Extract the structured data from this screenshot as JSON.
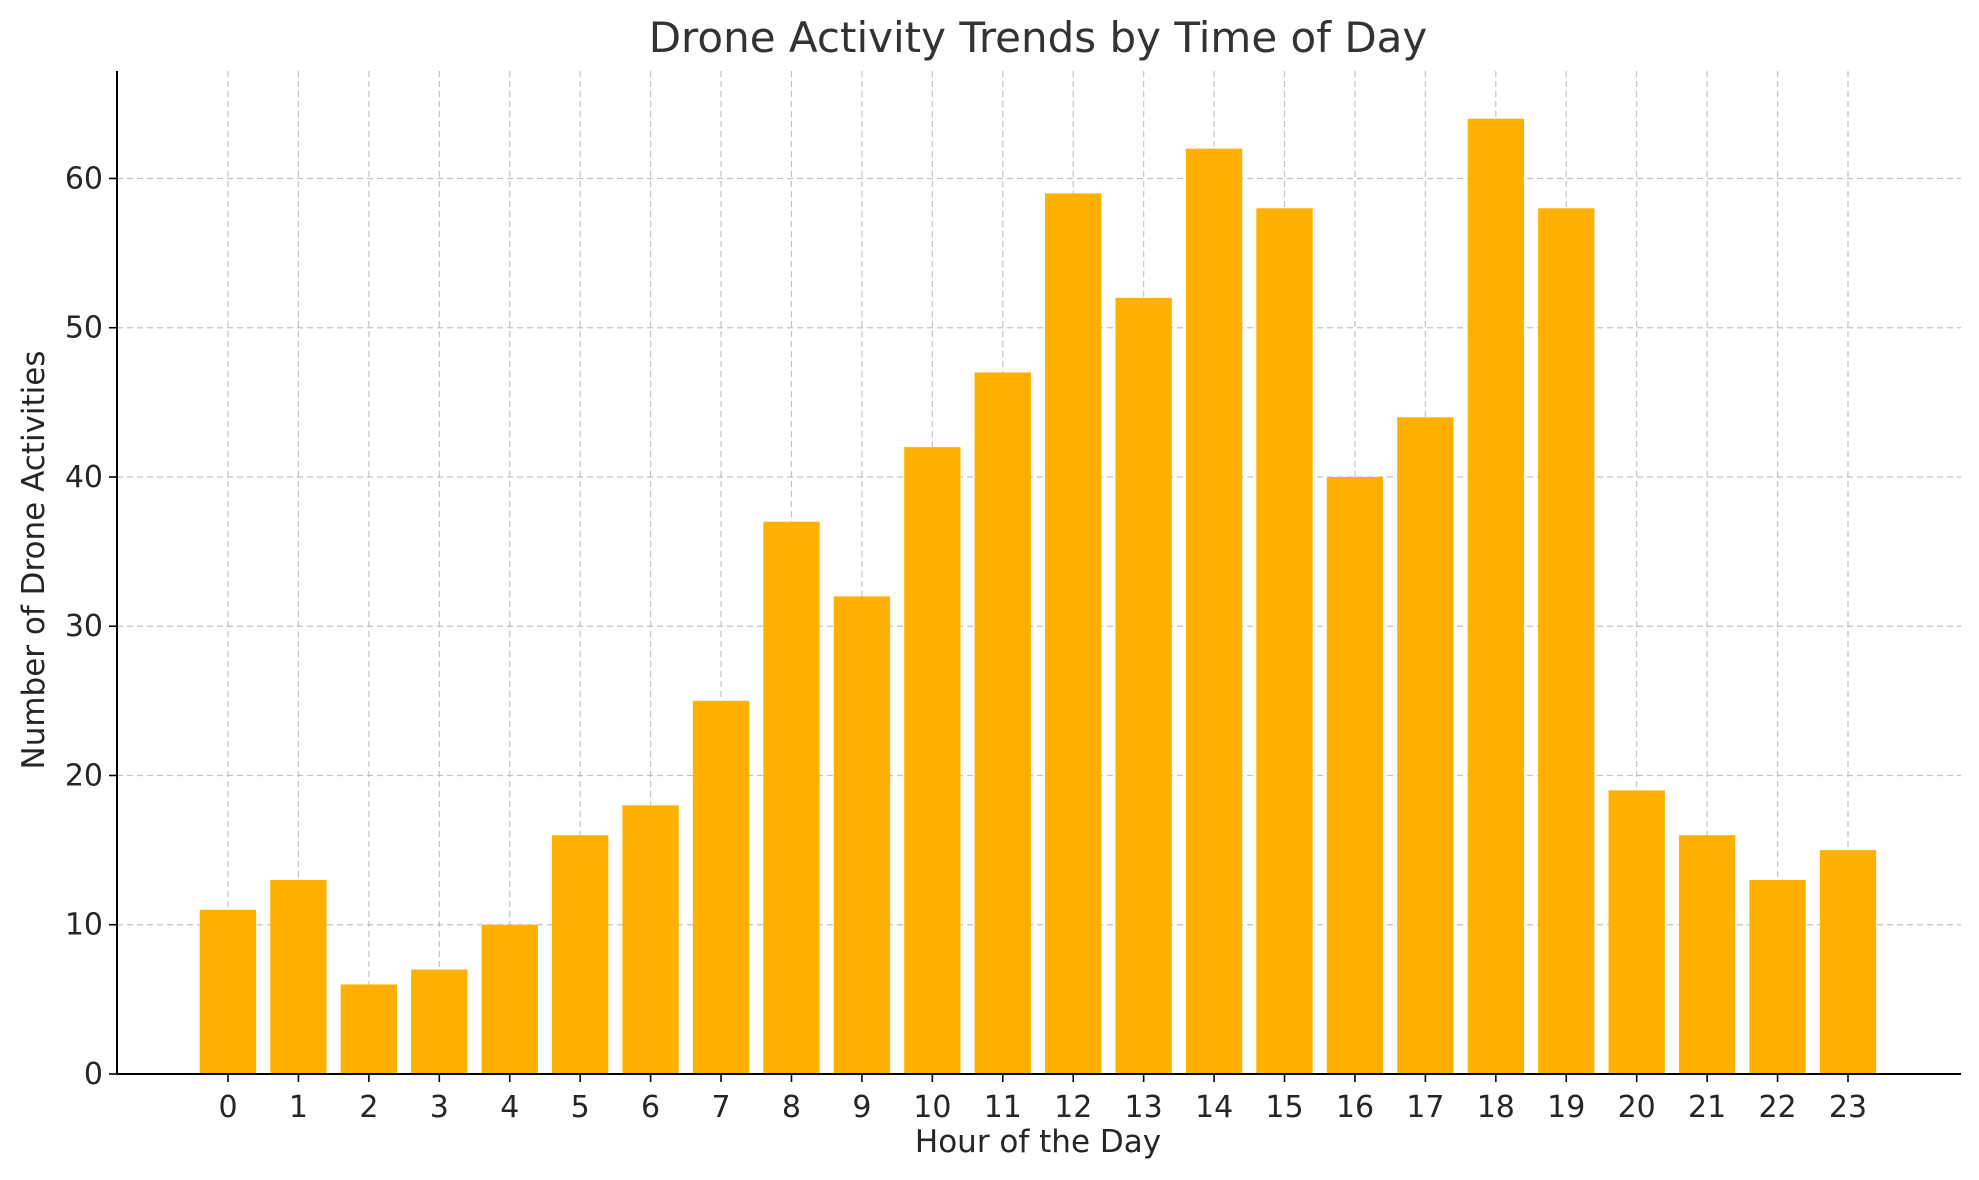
{
  "chart_data": {
    "type": "bar",
    "title": "Drone Activity Trends by Time of Day",
    "xlabel": "Hour of the Day",
    "ylabel": "Number of Drone Activities",
    "categories": [
      "0",
      "1",
      "2",
      "3",
      "4",
      "5",
      "6",
      "7",
      "8",
      "9",
      "10",
      "11",
      "12",
      "13",
      "14",
      "15",
      "16",
      "17",
      "18",
      "19",
      "20",
      "21",
      "22",
      "23"
    ],
    "values": [
      11,
      13,
      6,
      7,
      10,
      16,
      18,
      25,
      37,
      32,
      42,
      47,
      59,
      52,
      62,
      58,
      40,
      44,
      64,
      58,
      19,
      16,
      13,
      15
    ],
    "ylim": [
      0,
      67.2
    ],
    "yticks": [
      0,
      10,
      20,
      30,
      40,
      50,
      60
    ],
    "grid": true,
    "bar_color": "#ffb000"
  }
}
